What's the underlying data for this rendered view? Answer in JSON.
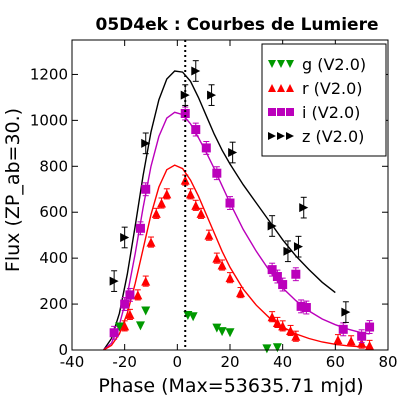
{
  "chart_data": {
    "type": "scatter",
    "title": "05D4ek : Courbes de Lumiere",
    "xlabel": "Phase (Max=53635.71 mjd)",
    "ylabel": "Flux (ZP_ab=30.)",
    "xlim": [
      -40,
      80
    ],
    "ylim": [
      0,
      1350
    ],
    "xticks": [
      -40,
      -20,
      0,
      20,
      40,
      60,
      80
    ],
    "yticks": [
      0,
      200,
      400,
      600,
      800,
      1000,
      1200
    ],
    "vline_x": 3,
    "legend_position": "top-right",
    "series": [
      {
        "name": "g (V2.0)",
        "color": "#009900",
        "marker": "triangle-down",
        "points": [
          {
            "x": -22,
            "y": 100
          },
          {
            "x": -14,
            "y": 105
          },
          {
            "x": -12,
            "y": 170
          },
          {
            "x": 4,
            "y": 150
          },
          {
            "x": 6,
            "y": 145
          },
          {
            "x": 15,
            "y": 95
          },
          {
            "x": 17,
            "y": 80
          },
          {
            "x": 20,
            "y": 75
          },
          {
            "x": 34,
            "y": 5
          },
          {
            "x": 38,
            "y": 10
          }
        ]
      },
      {
        "name": "r (V2.0)",
        "color": "#ff0000",
        "marker": "triangle-up",
        "err": 22,
        "points": [
          {
            "x": -20,
            "y": 105
          },
          {
            "x": -18,
            "y": 155
          },
          {
            "x": -15,
            "y": 240
          },
          {
            "x": -12,
            "y": 300
          },
          {
            "x": -10,
            "y": 470
          },
          {
            "x": -8,
            "y": 595
          },
          {
            "x": -6,
            "y": 640
          },
          {
            "x": -4,
            "y": 680
          },
          {
            "x": 3,
            "y": 740
          },
          {
            "x": 5,
            "y": 680
          },
          {
            "x": 7,
            "y": 630
          },
          {
            "x": 9,
            "y": 595
          },
          {
            "x": 12,
            "y": 500
          },
          {
            "x": 15,
            "y": 400
          },
          {
            "x": 17,
            "y": 370
          },
          {
            "x": 20,
            "y": 315
          },
          {
            "x": 24,
            "y": 250
          },
          {
            "x": 36,
            "y": 145
          },
          {
            "x": 38,
            "y": 120
          },
          {
            "x": 40,
            "y": 105
          },
          {
            "x": 43,
            "y": 85
          },
          {
            "x": 45,
            "y": 60
          },
          {
            "x": 61,
            "y": 45
          },
          {
            "x": 66,
            "y": 40
          },
          {
            "x": 70,
            "y": 30
          },
          {
            "x": 73,
            "y": 20
          }
        ]
      },
      {
        "name": "i (V2.0)",
        "color": "#bb00bb",
        "marker": "square",
        "err": 28,
        "points": [
          {
            "x": -24,
            "y": 75
          },
          {
            "x": -20,
            "y": 200
          },
          {
            "x": -18,
            "y": 240
          },
          {
            "x": -14,
            "y": 530
          },
          {
            "x": -12,
            "y": 700
          },
          {
            "x": 3,
            "y": 1030
          },
          {
            "x": 7,
            "y": 960
          },
          {
            "x": 11,
            "y": 880
          },
          {
            "x": 15,
            "y": 770
          },
          {
            "x": 20,
            "y": 640
          },
          {
            "x": 36,
            "y": 350
          },
          {
            "x": 38,
            "y": 320
          },
          {
            "x": 40,
            "y": 285
          },
          {
            "x": 45,
            "y": 330
          },
          {
            "x": 47,
            "y": 190
          },
          {
            "x": 49,
            "y": 185
          },
          {
            "x": 63,
            "y": 90
          },
          {
            "x": 70,
            "y": 60
          },
          {
            "x": 73,
            "y": 100
          }
        ]
      },
      {
        "name": "z (V2.0)",
        "color": "#000000",
        "marker": "triangle-right",
        "err": 45,
        "points": [
          {
            "x": -24,
            "y": 300
          },
          {
            "x": -20,
            "y": 490
          },
          {
            "x": -12,
            "y": 900
          },
          {
            "x": 3,
            "y": 1110
          },
          {
            "x": 7,
            "y": 1215
          },
          {
            "x": 13,
            "y": 1110
          },
          {
            "x": 21,
            "y": 860
          },
          {
            "x": 36,
            "y": 540
          },
          {
            "x": 42,
            "y": 430
          },
          {
            "x": 46,
            "y": 450
          },
          {
            "x": 48,
            "y": 620
          },
          {
            "x": 64,
            "y": 165
          }
        ]
      }
    ],
    "fit_curves": [
      {
        "color": "#000000",
        "points": [
          [
            -28,
            0
          ],
          [
            -25,
            50
          ],
          [
            -22,
            160
          ],
          [
            -19,
            330
          ],
          [
            -16,
            540
          ],
          [
            -13,
            760
          ],
          [
            -10,
            950
          ],
          [
            -7,
            1090
          ],
          [
            -4,
            1180
          ],
          [
            -1,
            1215
          ],
          [
            2,
            1210
          ],
          [
            5,
            1170
          ],
          [
            8,
            1100
          ],
          [
            11,
            1020
          ],
          [
            14,
            940
          ],
          [
            17,
            870
          ],
          [
            20,
            810
          ],
          [
            25,
            720
          ],
          [
            30,
            640
          ],
          [
            35,
            560
          ],
          [
            40,
            480
          ],
          [
            45,
            410
          ],
          [
            50,
            350
          ],
          [
            55,
            295
          ],
          [
            60,
            250
          ]
        ]
      },
      {
        "color": "#bb00bb",
        "points": [
          [
            -28,
            0
          ],
          [
            -25,
            30
          ],
          [
            -22,
            110
          ],
          [
            -19,
            240
          ],
          [
            -16,
            420
          ],
          [
            -13,
            620
          ],
          [
            -10,
            800
          ],
          [
            -7,
            930
          ],
          [
            -4,
            1010
          ],
          [
            -1,
            1035
          ],
          [
            2,
            1025
          ],
          [
            5,
            985
          ],
          [
            8,
            925
          ],
          [
            11,
            860
          ],
          [
            14,
            790
          ],
          [
            17,
            715
          ],
          [
            20,
            640
          ],
          [
            25,
            525
          ],
          [
            30,
            430
          ],
          [
            35,
            345
          ],
          [
            40,
            270
          ],
          [
            45,
            215
          ],
          [
            50,
            170
          ],
          [
            55,
            135
          ],
          [
            60,
            110
          ],
          [
            65,
            90
          ],
          [
            70,
            75
          ],
          [
            73,
            70
          ]
        ]
      },
      {
        "color": "#ff0000",
        "points": [
          [
            -28,
            0
          ],
          [
            -25,
            20
          ],
          [
            -22,
            70
          ],
          [
            -19,
            160
          ],
          [
            -16,
            290
          ],
          [
            -13,
            440
          ],
          [
            -10,
            590
          ],
          [
            -7,
            710
          ],
          [
            -4,
            785
          ],
          [
            -1,
            805
          ],
          [
            2,
            790
          ],
          [
            5,
            740
          ],
          [
            8,
            670
          ],
          [
            11,
            590
          ],
          [
            14,
            510
          ],
          [
            17,
            430
          ],
          [
            20,
            360
          ],
          [
            25,
            265
          ],
          [
            30,
            195
          ],
          [
            35,
            140
          ],
          [
            40,
            100
          ],
          [
            45,
            70
          ],
          [
            50,
            50
          ],
          [
            55,
            35
          ],
          [
            60,
            25
          ],
          [
            65,
            18
          ],
          [
            70,
            14
          ],
          [
            73,
            12
          ]
        ]
      }
    ]
  }
}
